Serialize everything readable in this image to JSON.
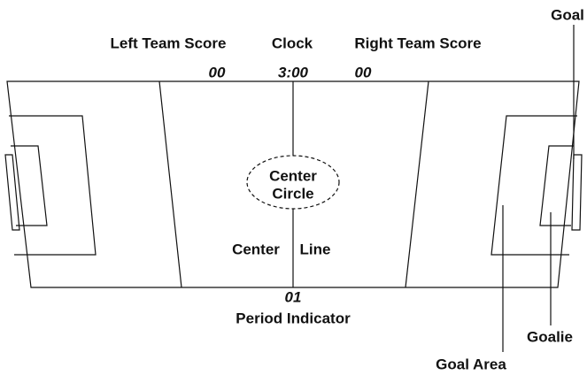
{
  "header": {
    "left_score_label": "Left Team Score",
    "clock_label": "Clock",
    "right_score_label": "Right Team Score"
  },
  "display": {
    "left_score": "00",
    "clock": "3:00",
    "right_score": "00",
    "period": "01"
  },
  "labels": {
    "goal": "Goal",
    "center_circle_1": "Center",
    "center_circle_2": "Circle",
    "center_line_1": "Center",
    "center_line_2": "Line",
    "period_indicator": "Period Indicator",
    "goalie": "Goalie",
    "goal_area": "Goal Area"
  }
}
